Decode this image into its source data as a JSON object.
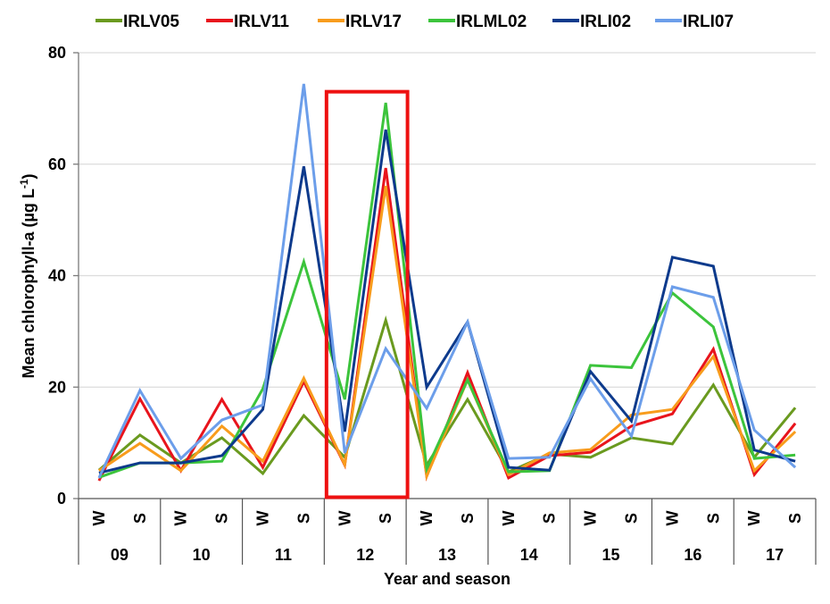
{
  "chart_data": {
    "type": "line",
    "title": "",
    "xlabel": "Year and season",
    "ylabel": "Mean chlorophyll-a  (µg L",
    "ylabel_superscript": "-1",
    "ylabel_close": ")",
    "ylim": [
      0,
      80
    ],
    "yticks": [
      0,
      20,
      40,
      60,
      80
    ],
    "grid": true,
    "legend_position": "top",
    "years": [
      "09",
      "10",
      "11",
      "12",
      "13",
      "14",
      "15",
      "16",
      "17"
    ],
    "seasons": [
      "W",
      "S"
    ],
    "categories": [
      "09-W",
      "09-S",
      "10-W",
      "10-S",
      "11-W",
      "11-S",
      "12-W",
      "12-S",
      "13-W",
      "13-S",
      "14-W",
      "14-S",
      "15-W",
      "15-S",
      "16-W",
      "16-S",
      "17-W",
      "17-S"
    ],
    "series": [
      {
        "name": "IRLV05",
        "color": "#6a9a1f",
        "values": [
          5.1,
          11.4,
          6.4,
          10.9,
          4.5,
          14.9,
          7.4,
          32.0,
          6.0,
          17.8,
          4.8,
          8.0,
          7.4,
          10.9,
          9.8,
          20.4,
          7.4,
          16.3
        ]
      },
      {
        "name": "IRLV11",
        "color": "#e8141c",
        "values": [
          3.2,
          17.9,
          5.0,
          17.8,
          5.6,
          21.0,
          6.0,
          59.3,
          4.0,
          22.6,
          3.7,
          7.7,
          8.3,
          13.0,
          15.2,
          26.8,
          4.3,
          13.5
        ]
      },
      {
        "name": "IRLV17",
        "color": "#f89c1c",
        "values": [
          5.0,
          9.9,
          5.0,
          13.0,
          6.7,
          21.6,
          6.1,
          56.1,
          4.0,
          21.3,
          4.3,
          8.2,
          8.8,
          15.0,
          16.0,
          25.5,
          5.0,
          12.0
        ]
      },
      {
        "name": "IRLML02",
        "color": "#3cc43c",
        "values": [
          3.8,
          6.4,
          6.4,
          6.7,
          19.7,
          42.5,
          17.8,
          71.0,
          5.3,
          21.3,
          4.8,
          5.0,
          23.9,
          23.5,
          36.9,
          30.8,
          7.2,
          7.8
        ]
      },
      {
        "name": "IRLI02",
        "color": "#0d3a8c",
        "values": [
          4.6,
          6.4,
          6.4,
          7.7,
          16.0,
          59.6,
          12.0,
          66.2,
          20.0,
          31.7,
          5.6,
          5.1,
          22.8,
          13.9,
          43.3,
          41.7,
          8.7,
          6.7
        ]
      },
      {
        "name": "IRLI07",
        "color": "#6c9eea",
        "values": [
          3.7,
          19.4,
          7.2,
          14.1,
          16.8,
          74.4,
          8.2,
          26.9,
          16.2,
          31.7,
          7.2,
          7.4,
          21.5,
          11.2,
          38.0,
          36.1,
          12.3,
          5.6
        ]
      }
    ],
    "annotations": [
      {
        "type": "highlight-box",
        "label": "12",
        "color": "#ee1111",
        "covers_year": "12",
        "y_range": [
          0,
          73
        ]
      }
    ]
  }
}
